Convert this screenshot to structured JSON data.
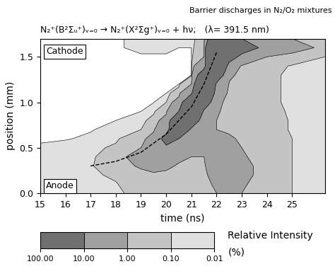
{
  "header": "Barrier discharges in N₂/O₂ mixtures",
  "chart_data": {
    "type": "contour",
    "title": "N₂⁺(B²Σᵤ⁺)ᵥ₌₀ → N₂⁺(X²Σg⁺)ᵥ₌₀ + hν;   (λ= 391.5 nm)",
    "x_label": "time (ns)",
    "y_label": "position (mm)",
    "annotations": [
      "Cathode",
      "Anode"
    ],
    "xlim": [
      15,
      26.3
    ],
    "xticks": [
      15,
      16,
      17,
      18,
      19,
      20,
      21,
      22,
      23,
      24,
      25
    ],
    "ylim": [
      0,
      1.7
    ],
    "yticks": [
      {
        "value": 0,
        "label": "0.0"
      },
      {
        "value": 0.5,
        "label": "0.5"
      },
      {
        "value": 1,
        "label": "1.0"
      },
      {
        "value": 1.5,
        "label": "1.5"
      }
    ],
    "x": [
      15,
      16,
      17,
      18,
      19,
      19.5,
      20,
      20.5,
      21,
      21.5,
      22,
      22.5,
      23,
      24,
      25,
      26.3
    ],
    "y": [
      0.0,
      0.1,
      0.2,
      0.3,
      0.4,
      0.5,
      0.6,
      0.7,
      0.8,
      0.9,
      1.0,
      1.1,
      1.2,
      1.3,
      1.4,
      1.5,
      1.6,
      1.7
    ],
    "cells": [
      [
        0.03,
        0.03,
        0.03,
        0.05,
        0.2,
        0.3,
        0.4,
        0.5,
        0.5,
        0.6,
        1,
        2,
        1,
        0.3,
        0.1,
        0.05
      ],
      [
        0.03,
        0.03,
        0.04,
        0.08,
        0.3,
        0.5,
        0.6,
        0.6,
        0.6,
        0.7,
        1.2,
        2.5,
        1.2,
        0.3,
        0.1,
        0.05
      ],
      [
        0.03,
        0.03,
        0.05,
        0.15,
        0.6,
        0.8,
        0.8,
        0.7,
        0.7,
        0.8,
        1.5,
        3,
        1.5,
        0.4,
        0.1,
        0.05
      ],
      [
        0.02,
        0.03,
        0.06,
        0.4,
        1.2,
        1.5,
        1.2,
        0.9,
        0.8,
        0.9,
        1.8,
        3.5,
        1.5,
        0.4,
        0.1,
        0.05
      ],
      [
        0.02,
        0.02,
        0.05,
        0.3,
        2,
        4,
        2,
        1.2,
        1,
        1,
        2,
        3,
        1.2,
        0.3,
        0.1,
        0.05
      ],
      [
        0.015,
        0.02,
        0.03,
        0.15,
        1,
        5,
        8,
        3,
        1.5,
        1.2,
        1.5,
        2,
        1,
        0.3,
        0.1,
        0.05
      ],
      [
        0.005,
        0.008,
        0.015,
        0.05,
        0.4,
        2,
        15,
        10,
        3,
        1.5,
        1.2,
        1.2,
        0.8,
        0.3,
        0.1,
        0.05
      ],
      [
        0.005,
        0.005,
        0.008,
        0.02,
        0.1,
        0.6,
        6,
        25,
        8,
        2.5,
        1,
        0.8,
        0.5,
        0.2,
        0.08,
        0.05
      ],
      [
        0.005,
        0.005,
        0.005,
        0.01,
        0.03,
        0.2,
        2,
        30,
        20,
        4,
        1,
        0.6,
        0.4,
        0.2,
        0.08,
        0.05
      ],
      [
        0.005,
        0.005,
        0.005,
        0.005,
        0.01,
        0.05,
        0.5,
        10,
        40,
        8,
        1.2,
        0.5,
        0.3,
        0.15,
        0.08,
        0.04
      ],
      [
        0.005,
        0.005,
        0.005,
        0.005,
        0.005,
        0.008,
        0.1,
        2,
        30,
        20,
        1.5,
        0.5,
        0.3,
        0.15,
        0.06,
        0.04
      ],
      [
        0.005,
        0.005,
        0.005,
        0.005,
        0.005,
        0.005,
        0.01,
        0.3,
        8,
        45,
        3,
        0.6,
        0.3,
        0.15,
        0.06,
        0.04
      ],
      [
        0.005,
        0.005,
        0.005,
        0.005,
        0.005,
        0.005,
        0.005,
        0.008,
        1,
        40,
        8,
        0.8,
        0.3,
        0.15,
        0.06,
        0.04
      ],
      [
        0.005,
        0.005,
        0.005,
        0.005,
        0.005,
        0.005,
        0.005,
        0.005,
        0.008,
        20,
        20,
        1.5,
        0.4,
        0.15,
        0.06,
        0.04
      ],
      [
        0.005,
        0.005,
        0.005,
        0.005,
        0.005,
        0.005,
        0.005,
        0.005,
        0.008,
        5,
        50,
        3,
        0.8,
        0.2,
        0.08,
        0.04
      ],
      [
        0.005,
        0.005,
        0.005,
        0.005,
        0.005,
        0.005,
        0.005,
        0.005,
        0.008,
        1,
        90,
        20,
        5,
        1,
        0.3,
        0.1
      ],
      [
        0.005,
        0.005,
        0.005,
        0.005,
        0.02,
        0.02,
        0.02,
        0.01,
        0.01,
        0.5,
        80,
        60,
        20,
        5,
        2,
        0.5
      ],
      [
        0.005,
        0.005,
        0.005,
        0.005,
        0.02,
        0.02,
        0.02,
        0.02,
        0.02,
        0.3,
        30,
        30,
        10,
        3,
        1,
        0.3
      ]
    ],
    "levels": [
      0.01,
      0.1,
      1,
      10,
      100
    ],
    "colors": [
      "#e0e0e0",
      "#c4c4c4",
      "#a0a0a0",
      "#707070"
    ],
    "path": {
      "x": [
        17,
        18,
        19,
        20,
        21,
        21.5,
        22
      ],
      "y": [
        0.3,
        0.35,
        0.45,
        0.65,
        0.95,
        1.2,
        1.55
      ],
      "line_style": "dashed",
      "color": "#000000"
    },
    "colorbar": {
      "label": [
        "Relative Intensity",
        "(%)"
      ],
      "log": true,
      "lim": [
        100,
        0.01
      ],
      "ticks": [
        {
          "value": 100,
          "label": "100.00"
        },
        {
          "value": 10,
          "label": "10.00"
        },
        {
          "value": 1,
          "label": "1.00"
        },
        {
          "value": 0.1,
          "label": "0.10"
        },
        {
          "value": 0.01,
          "label": "0.01"
        }
      ]
    }
  }
}
